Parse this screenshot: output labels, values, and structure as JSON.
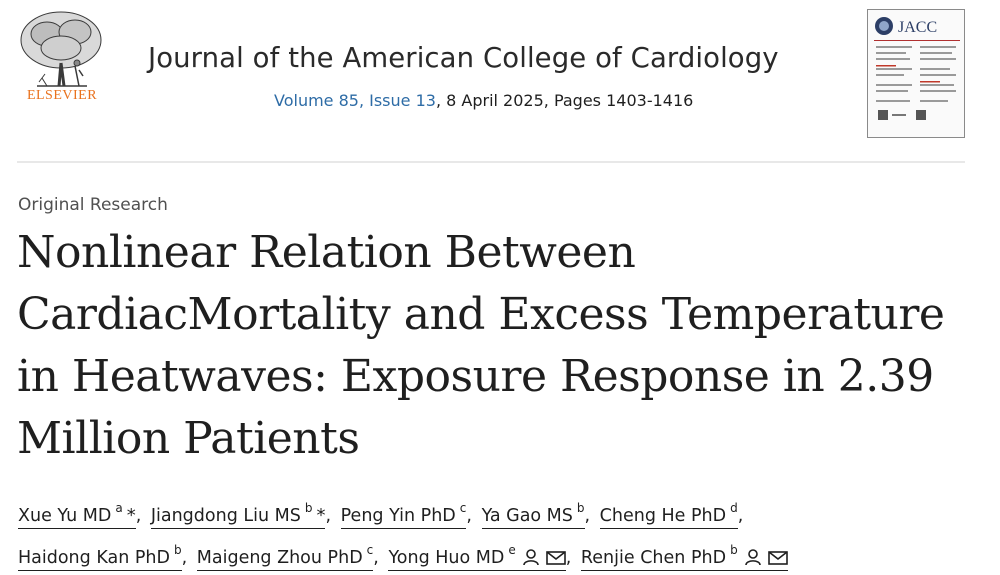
{
  "publisher": {
    "name": "ELSEVIER",
    "brand_color": "#e9711c"
  },
  "journal": {
    "title": "Journal of the American College of Cardiology",
    "volume_issue": "Volume 85, Issue 13",
    "issue_rest": ", 8 April 2025, Pages 1403-1416",
    "cover_label": "JACC"
  },
  "article": {
    "type": "Original Research",
    "title_lines": [
      "Nonlinear Relation Between",
      "CardiacMortality and Excess Temperature",
      "in Heatwaves: Exposure Response in 2.39",
      "Million Patients"
    ]
  },
  "authors": [
    {
      "name": "Xue Yu MD",
      "aff": "a",
      "star": "*"
    },
    {
      "name": "Jiangdong Liu MS",
      "aff": "b",
      "star": "*"
    },
    {
      "name": "Peng Yin PhD",
      "aff": "c"
    },
    {
      "name": "Ya Gao MS",
      "aff": "b"
    },
    {
      "name": "Cheng He PhD",
      "aff": "d"
    },
    {
      "name": "Haidong Kan PhD",
      "aff": "b"
    },
    {
      "name": "Maigeng Zhou PhD",
      "aff": "c"
    },
    {
      "name": "Yong Huo MD",
      "aff": "e",
      "icons": [
        "person-icon",
        "mail-icon"
      ]
    },
    {
      "name": "Renjie Chen PhD",
      "aff": "b",
      "icons": [
        "person-icon",
        "mail-icon"
      ]
    }
  ],
  "colors": {
    "link": "#2e6ca6",
    "text": "#1f1f1f",
    "divider": "#e8e8e8"
  }
}
